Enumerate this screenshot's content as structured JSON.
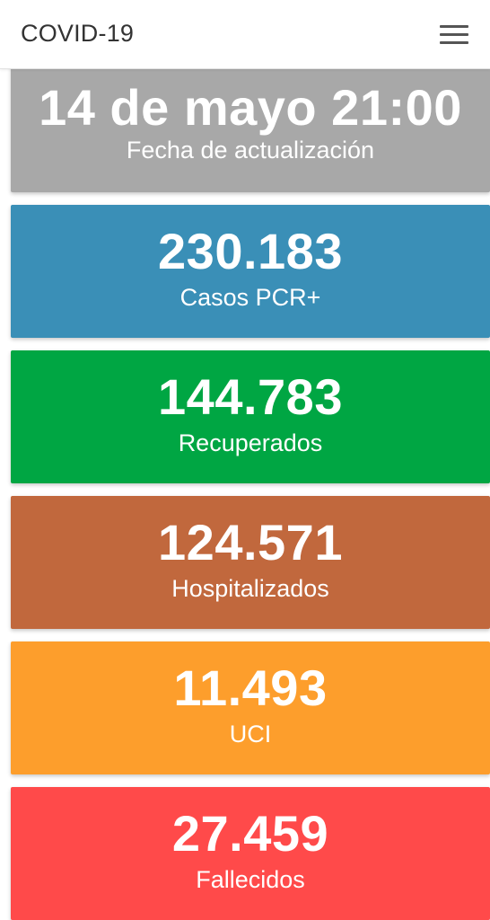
{
  "header": {
    "brand": "COVID-19",
    "menu_icon": "hamburger-menu-icon"
  },
  "cards": [
    {
      "value": "14 de mayo 21:00",
      "label": "Fecha de actualización",
      "color": "#a8a8a8"
    },
    {
      "value": "230.183",
      "label": "Casos PCR+",
      "color": "#3a8fb7"
    },
    {
      "value": "144.783",
      "label": "Recuperados",
      "color": "#00a643"
    },
    {
      "value": "124.571",
      "label": "Hospitalizados",
      "color": "#c1683d"
    },
    {
      "value": "11.493",
      "label": "UCI",
      "color": "#fd9e2c"
    },
    {
      "value": "27.459",
      "label": "Fallecidos",
      "color": "#ff4a4a"
    }
  ]
}
